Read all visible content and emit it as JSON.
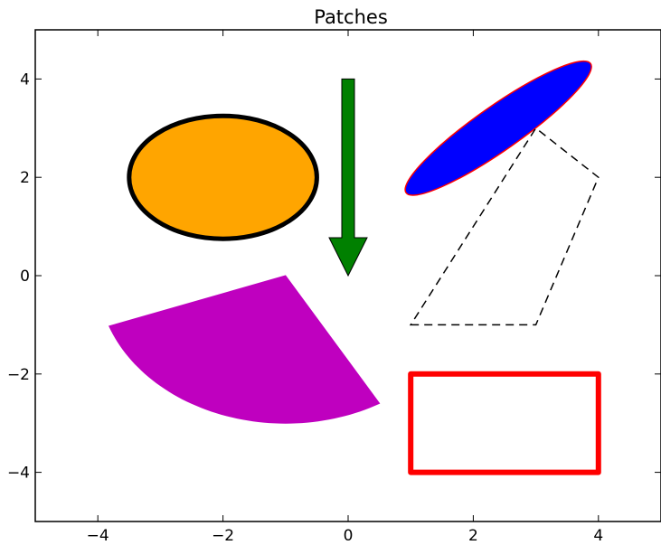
{
  "chart_data": {
    "type": "patches",
    "title": "Patches",
    "xlim": [
      -5,
      5
    ],
    "ylim": [
      -5,
      5
    ],
    "x_ticks": [
      -4,
      -2,
      0,
      2,
      4
    ],
    "y_ticks": [
      -4,
      -2,
      0,
      2,
      4
    ],
    "x_tick_labels": [
      "−4",
      "−2",
      "0",
      "2",
      "4"
    ],
    "y_tick_labels": [
      "−4",
      "−2",
      "0",
      "2",
      "4"
    ],
    "grid": false,
    "patches": [
      {
        "kind": "ellipse",
        "center": [
          -2,
          2
        ],
        "width": 3,
        "height": 2.5,
        "angle": 0,
        "facecolor": "#ffa500",
        "edgecolor": "#000000",
        "linewidth": 5
      },
      {
        "kind": "arrow",
        "start": [
          0,
          4
        ],
        "end": [
          0,
          0
        ],
        "facecolor": "#008000",
        "edgecolor": "#000000"
      },
      {
        "kind": "ellipse",
        "center": [
          2.4,
          3
        ],
        "width": 3.6,
        "height": 0.9,
        "angle": 35,
        "facecolor": "#0000ff",
        "edgecolor": "#ff0000",
        "linewidth": 1.5
      },
      {
        "kind": "polygon",
        "points": [
          [
            1,
            -1
          ],
          [
            3,
            -1
          ],
          [
            4,
            2
          ],
          [
            3,
            3
          ]
        ],
        "facecolor": "none",
        "edgecolor": "#000000",
        "linestyle": "dashed",
        "linewidth": 1.5
      },
      {
        "kind": "wedge",
        "center": [
          -1,
          0
        ],
        "radius": 3,
        "theta1": -60,
        "theta2": -160,
        "facecolor": "#bf00bf",
        "edgecolor": "#bf00bf"
      },
      {
        "kind": "rectangle",
        "xy": [
          1,
          -4
        ],
        "width": 3,
        "height": 2,
        "facecolor": "none",
        "edgecolor": "#ff0000",
        "linewidth": 6
      }
    ]
  }
}
